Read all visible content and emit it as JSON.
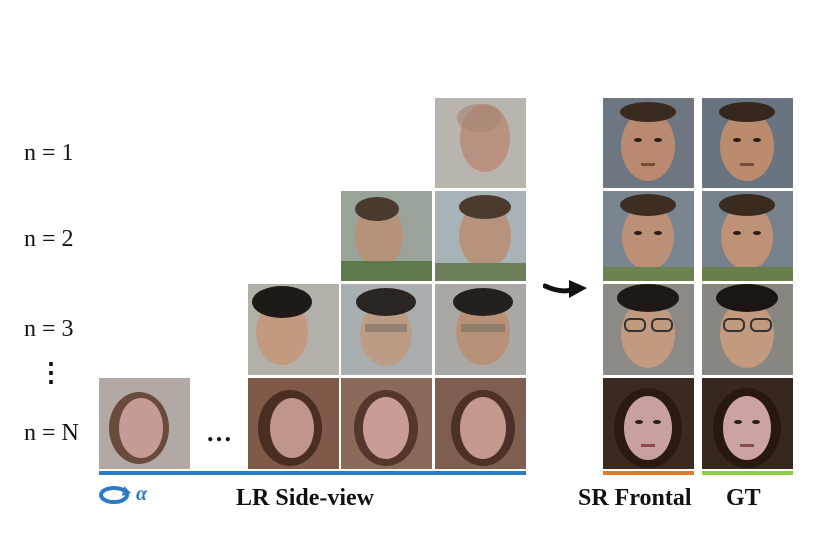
{
  "row_labels": [
    "n = 1",
    "n = 2",
    "n = 3",
    "n = N"
  ],
  "vertical_ellipsis": "⋮",
  "horizontal_ellipsis": "…",
  "captions": {
    "lr_side_view": "LR Side-view",
    "sr_frontal": "SR Frontal",
    "gt": "GT"
  },
  "rotation_symbol": "α",
  "colors": {
    "lr_bar": "#2d7bc4",
    "sr_bar": "#e07b2b",
    "gt_bar": "#8fcc4a",
    "arrow": "#111111"
  },
  "icons": [
    "rotation-arrow-icon",
    "right-arrow-icon"
  ]
}
